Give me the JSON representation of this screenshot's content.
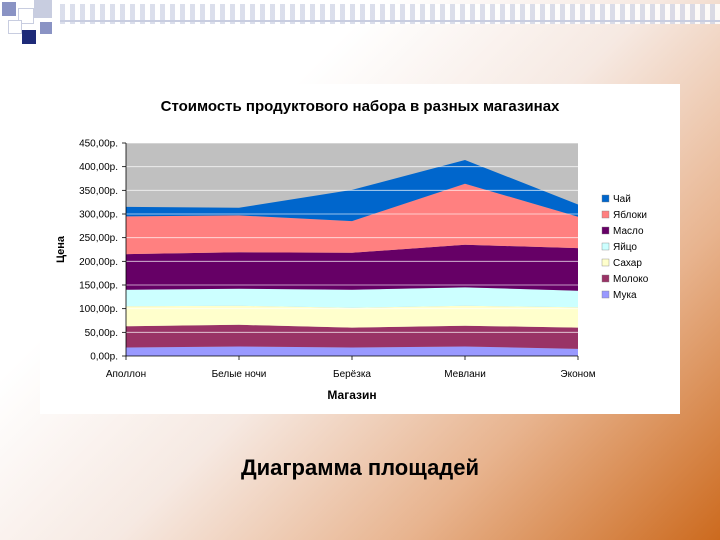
{
  "caption": "Диаграмма площадей",
  "chart_data": {
    "type": "area",
    "stacked": true,
    "title": "Стоимость продуктового набора в разных магазинах",
    "xlabel": "Магазин",
    "ylabel": "Цена",
    "categories": [
      "Аполлон",
      "Белые ночи",
      "Берёзка",
      "Мевлани",
      "Эконом"
    ],
    "ylim": [
      0,
      450
    ],
    "yticks": [
      "0,00р.",
      "50,00р.",
      "100,00р.",
      "150,00р.",
      "200,00р.",
      "250,00р.",
      "300,00р.",
      "350,00р.",
      "400,00р.",
      "450,00р."
    ],
    "plot_background": "#c0c0c0",
    "grid": "horizontal",
    "legend_position": "right",
    "series": [
      {
        "name": "Мука",
        "color": "#9999ff",
        "values": [
          18,
          20,
          18,
          20,
          15
        ]
      },
      {
        "name": "Молоко",
        "color": "#993366",
        "values": [
          45,
          46,
          42,
          44,
          45
        ]
      },
      {
        "name": "Сахар",
        "color": "#ffffcc",
        "values": [
          42,
          40,
          42,
          42,
          43
        ]
      },
      {
        "name": "Яйцо",
        "color": "#ccffff",
        "values": [
          35,
          36,
          38,
          39,
          35
        ]
      },
      {
        "name": "Масло",
        "color": "#660066",
        "values": [
          75,
          77,
          78,
          90,
          90
        ]
      },
      {
        "name": "Яблоки",
        "color": "#ff8080",
        "values": [
          80,
          78,
          67,
          129,
          66
        ]
      },
      {
        "name": "Чай",
        "color": "#0066cc",
        "values": [
          20,
          16,
          66,
          50,
          26
        ]
      }
    ]
  }
}
